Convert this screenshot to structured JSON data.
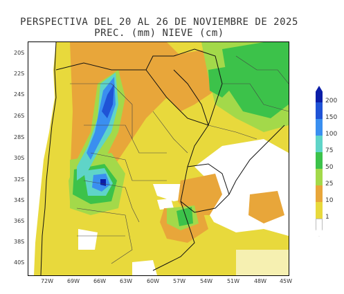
{
  "title": {
    "line1": "PERSPECTIVA DEL 20 AL 26 DE NOVIEMBRE DE 2025",
    "line2": "PREC. (mm) NIEVE (cm)"
  },
  "map": {
    "lat_labels": [
      "20S",
      "22S",
      "24S",
      "26S",
      "28S",
      "30S",
      "32S",
      "34S",
      "36S",
      "38S",
      "40S"
    ],
    "lon_labels": [
      "72W",
      "69W",
      "66W",
      "63W",
      "60W",
      "57W",
      "54W",
      "51W",
      "48W",
      "45W"
    ]
  },
  "legend": {
    "labels": [
      "200",
      "150",
      "100",
      "75",
      "50",
      "25",
      "10",
      "1"
    ],
    "colors": [
      "#0b1ea8",
      "#1f53d6",
      "#3a8ff0",
      "#5fd4c8",
      "#3cc24a",
      "#a3d94a",
      "#e8a63a",
      "#e8d93c"
    ]
  },
  "colors": {
    "precip_1": "#e8d93c",
    "precip_10": "#e8a63a",
    "precip_25": "#a3d94a",
    "precip_50": "#3cc24a",
    "precip_75": "#5fd4c8",
    "precip_100": "#3a8ff0",
    "precip_150": "#1f53d6",
    "precip_200": "#0b1ea8"
  }
}
